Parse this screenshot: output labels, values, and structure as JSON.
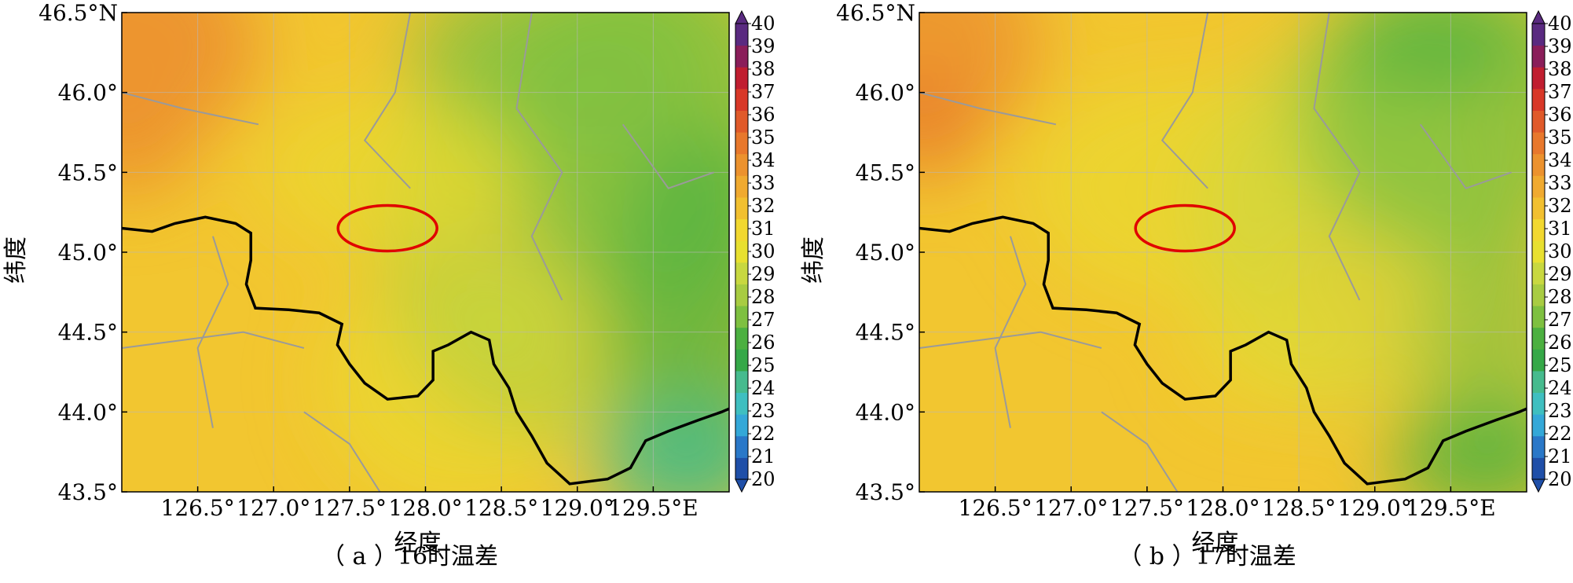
{
  "panels": [
    {
      "id": "a",
      "caption": "（ a ）16时温差",
      "xlabel": "经度",
      "ylabel": "纬度",
      "ellipse": {
        "lon": 127.75,
        "lat": 45.15
      },
      "boundary_color": "#000000",
      "ellipse_color": "#e00000"
    },
    {
      "id": "b",
      "caption": "（ b ）17时温差",
      "xlabel": "经度",
      "ylabel": "纬度",
      "ellipse": {
        "lon": 127.75,
        "lat": 45.15
      },
      "boundary_color": "#000000",
      "ellipse_color": "#e00000"
    }
  ],
  "axes": {
    "lon_range": [
      126.0,
      130.0
    ],
    "lat_range": [
      43.5,
      46.5
    ],
    "lon_ticks": [
      {
        "value": 126.5,
        "label": "126.5°"
      },
      {
        "value": 127.0,
        "label": "127.0°"
      },
      {
        "value": 127.5,
        "label": "127.5°"
      },
      {
        "value": 128.0,
        "label": "128.0°"
      },
      {
        "value": 128.5,
        "label": "128.5°"
      },
      {
        "value": 129.0,
        "label": "129.0°"
      },
      {
        "value": 129.5,
        "label": "129.5°E"
      }
    ],
    "lat_ticks": [
      {
        "value": 43.5,
        "label": "43.5°"
      },
      {
        "value": 44.0,
        "label": "44.0°"
      },
      {
        "value": 44.5,
        "label": "44.5°"
      },
      {
        "value": 45.0,
        "label": "45.0°"
      },
      {
        "value": 45.5,
        "label": "45.5°"
      },
      {
        "value": 46.0,
        "label": "46.0°"
      },
      {
        "value": 46.5,
        "label": "46.5°N"
      }
    ]
  },
  "colorbar": {
    "min": 20,
    "max": 40,
    "labels": [
      "20",
      "21",
      "22",
      "23",
      "24",
      "25",
      "26",
      "27",
      "28",
      "29",
      "30",
      "31",
      "32",
      "33",
      "34",
      "35",
      "36",
      "37",
      "38",
      "39",
      "40"
    ],
    "colors": [
      "#1f4fa8",
      "#2a78c8",
      "#34a8d8",
      "#3fbfc0",
      "#46bb8e",
      "#35a848",
      "#4cb040",
      "#7ec040",
      "#a8cc42",
      "#c8d840",
      "#e8e030",
      "#f2d830",
      "#f2c030",
      "#f0aa30",
      "#ec922e",
      "#e8782c",
      "#e05a2a",
      "#d83828",
      "#c01e30",
      "#8a1e5a",
      "#5a2a80"
    ]
  }
}
